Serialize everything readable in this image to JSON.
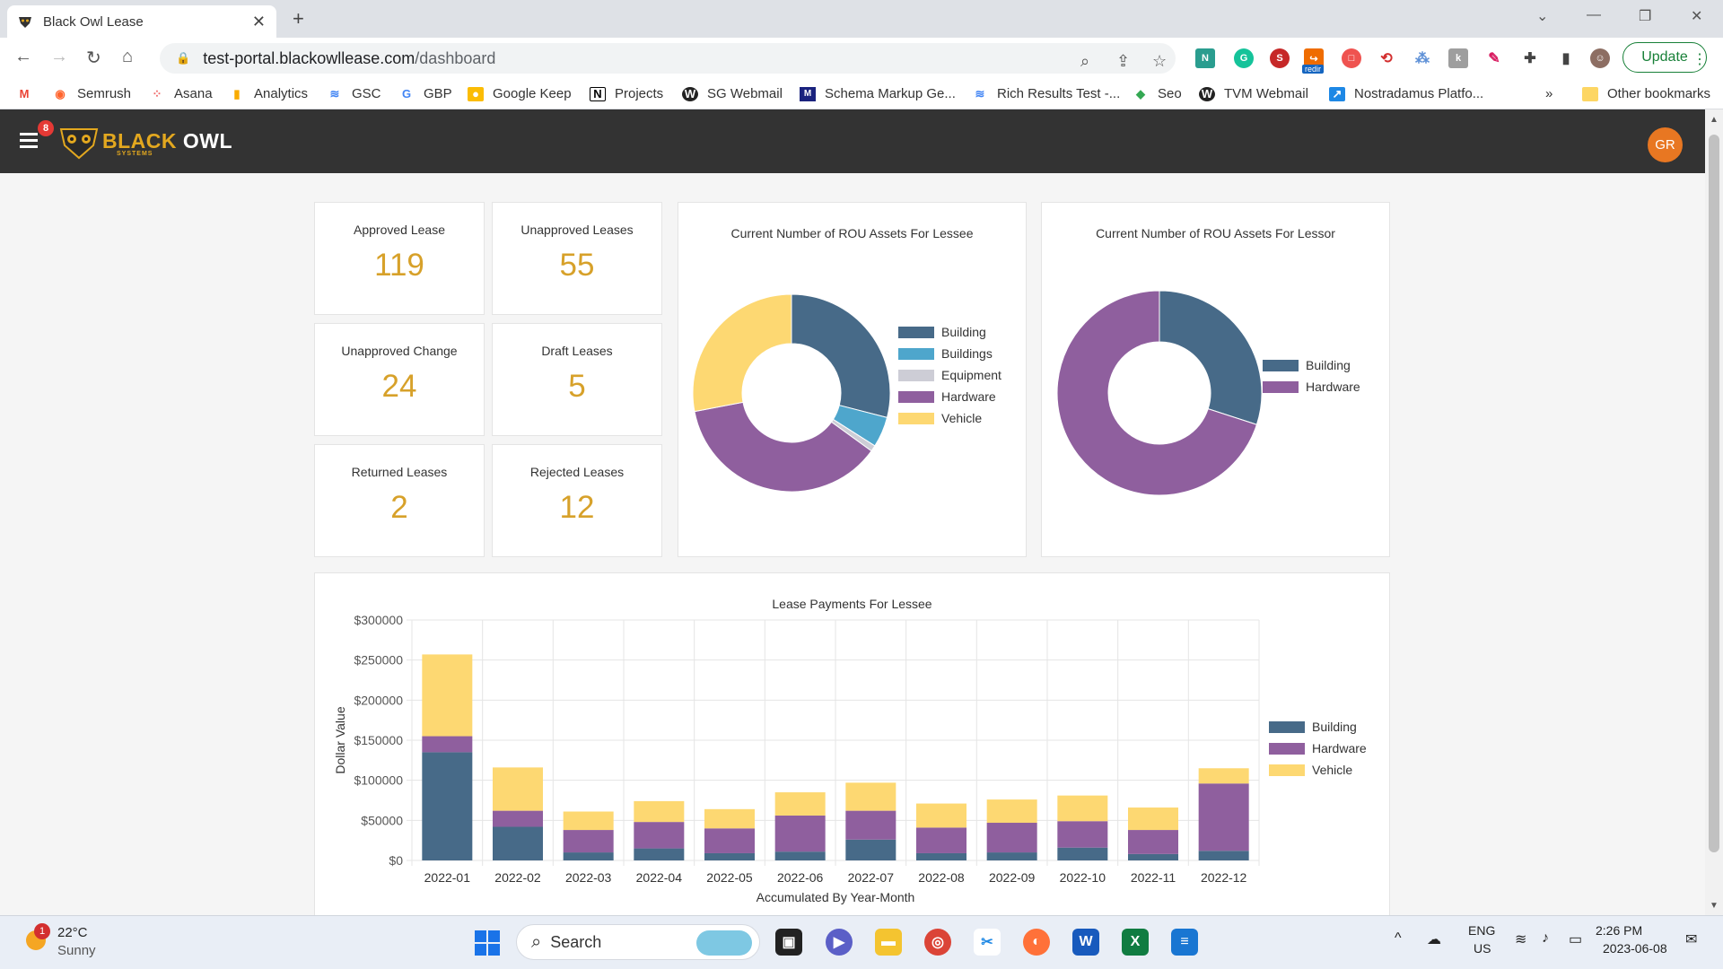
{
  "browser": {
    "tab_title": "Black Owl Lease",
    "url_host": "test-portal.blackowllease.com",
    "url_path": "/dashboard",
    "update_label": "Update",
    "bookmarks": [
      "Semrush",
      "Asana",
      "Analytics",
      "GSC",
      "GBP",
      "Google Keep",
      "Projects",
      "SG Webmail",
      "Schema Markup Ge...",
      "Rich Results Test -...",
      "Seo",
      "TVM Webmail",
      "Nostradamus Platfo..."
    ],
    "more_bookmarks": "»",
    "other_bookmarks": "Other bookmarks",
    "redir_badge": "redir"
  },
  "app": {
    "logo_main": "BLACK",
    "logo_accent": "OWL",
    "logo_sub": "SYSTEMS",
    "notifications": "8",
    "user_initials": "GR"
  },
  "stats": [
    {
      "label": "Approved Lease",
      "value": "119"
    },
    {
      "label": "Unapproved Leases",
      "value": "55"
    },
    {
      "label": "Unapproved Change",
      "value": "24"
    },
    {
      "label": "Draft Leases",
      "value": "5"
    },
    {
      "label": "Returned Leases",
      "value": "2"
    },
    {
      "label": "Rejected Leases",
      "value": "12"
    }
  ],
  "colors": {
    "building": "#476a88",
    "buildings": "#4ea6cc",
    "equipment": "#cdcdd6",
    "hardware": "#8f5f9e",
    "vehicle": "#fdd872",
    "stat_value": "#d7a12a"
  },
  "chart_data": [
    {
      "type": "pie",
      "title": "Current Number of ROU Assets For Lessee",
      "donut": true,
      "legend": "right",
      "categories": [
        "Building",
        "Buildings",
        "Equipment",
        "Hardware",
        "Vehicle"
      ],
      "values": [
        29,
        5,
        1,
        37,
        28
      ]
    },
    {
      "type": "pie",
      "title": "Current Number of ROU Assets For Lessor",
      "donut": true,
      "legend": "right",
      "categories": [
        "Building",
        "Hardware"
      ],
      "values": [
        30,
        70
      ]
    },
    {
      "type": "bar",
      "stacked": true,
      "title": "Lease Payments For Lessee",
      "xlabel": "Accumulated By Year-Month",
      "ylabel": "Dollar Value",
      "ylim": [
        0,
        300000
      ],
      "yticks": [
        "$0",
        "$50000",
        "$100000",
        "$150000",
        "$200000",
        "$250000",
        "$300000"
      ],
      "grid": true,
      "legend": "right",
      "categories": [
        "2022-01",
        "2022-02",
        "2022-03",
        "2022-04",
        "2022-05",
        "2022-06",
        "2022-07",
        "2022-08",
        "2022-09",
        "2022-10",
        "2022-11",
        "2022-12"
      ],
      "series": [
        {
          "name": "Building",
          "values": [
            135000,
            42000,
            10000,
            15000,
            9000,
            11000,
            26000,
            9000,
            10000,
            16000,
            8000,
            12000
          ]
        },
        {
          "name": "Hardware",
          "values": [
            20000,
            20000,
            28000,
            33000,
            31000,
            45000,
            36000,
            32000,
            37000,
            33000,
            30000,
            84000
          ]
        },
        {
          "name": "Vehicle",
          "values": [
            102000,
            54000,
            23000,
            26000,
            24000,
            29000,
            35000,
            30000,
            29000,
            32000,
            28000,
            19000
          ]
        }
      ]
    }
  ],
  "taskbar": {
    "weather_temp": "22°C",
    "weather_desc": "Sunny",
    "weather_badge": "1",
    "search_label": "Search",
    "lang": "ENG",
    "region": "US",
    "time": "2:26 PM",
    "date": "2023-06-08"
  }
}
